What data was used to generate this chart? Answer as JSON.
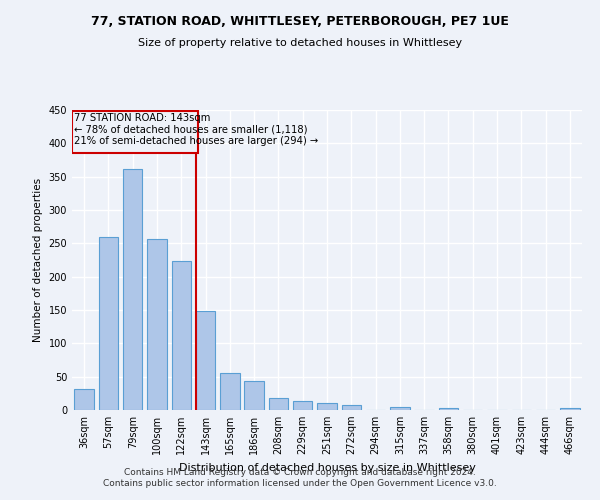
{
  "title": "77, STATION ROAD, WHITTLESEY, PETERBOROUGH, PE7 1UE",
  "subtitle": "Size of property relative to detached houses in Whittlesey",
  "xlabel": "Distribution of detached houses by size in Whittlesey",
  "ylabel": "Number of detached properties",
  "categories": [
    "36sqm",
    "57sqm",
    "79sqm",
    "100sqm",
    "122sqm",
    "143sqm",
    "165sqm",
    "186sqm",
    "208sqm",
    "229sqm",
    "251sqm",
    "272sqm",
    "294sqm",
    "315sqm",
    "337sqm",
    "358sqm",
    "380sqm",
    "401sqm",
    "423sqm",
    "444sqm",
    "466sqm"
  ],
  "values": [
    31,
    259,
    362,
    256,
    224,
    148,
    56,
    44,
    18,
    14,
    10,
    7,
    0,
    5,
    0,
    3,
    0,
    0,
    0,
    0,
    3
  ],
  "bar_color": "#aec6e8",
  "bar_edge_color": "#5a9fd4",
  "highlight_index": 5,
  "highlight_line_color": "#cc0000",
  "annotation_text_line1": "77 STATION ROAD: 143sqm",
  "annotation_text_line2": "← 78% of detached houses are smaller (1,118)",
  "annotation_text_line3": "21% of semi-detached houses are larger (294) →",
  "annotation_box_color": "#cc0000",
  "footer_line1": "Contains HM Land Registry data © Crown copyright and database right 2024.",
  "footer_line2": "Contains public sector information licensed under the Open Government Licence v3.0.",
  "ylim": [
    0,
    450
  ],
  "background_color": "#eef2f9",
  "grid_color": "#ffffff"
}
